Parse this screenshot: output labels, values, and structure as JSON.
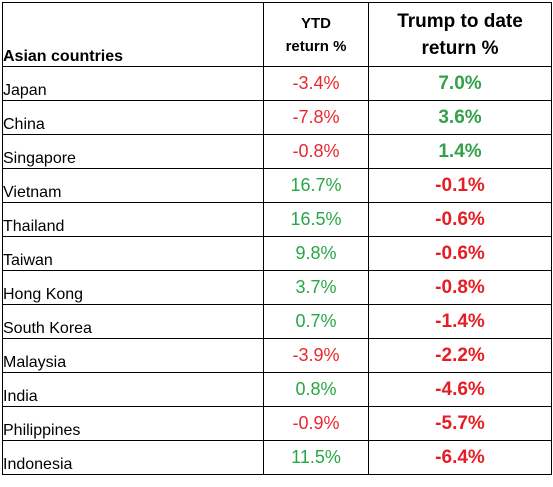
{
  "headers": {
    "country": "Asian countries",
    "ytd_line1": "YTD",
    "ytd_line2": "return %",
    "trump_line1": "Trump to date",
    "trump_line2": "return %"
  },
  "colors": {
    "negative": "#e8282e",
    "positive": "#28a745"
  },
  "rows": [
    {
      "country": "Japan",
      "ytd": "-3.4%",
      "ytd_sign": "neg",
      "trump": "7.0%",
      "trump_sign": "pos"
    },
    {
      "country": "China",
      "ytd": "-7.8%",
      "ytd_sign": "neg",
      "trump": "3.6%",
      "trump_sign": "pos"
    },
    {
      "country": "Singapore",
      "ytd": "-0.8%",
      "ytd_sign": "neg",
      "trump": "1.4%",
      "trump_sign": "pos"
    },
    {
      "country": "Vietnam",
      "ytd": "16.7%",
      "ytd_sign": "pos",
      "trump": "-0.1%",
      "trump_sign": "neg"
    },
    {
      "country": "Thailand",
      "ytd": "16.5%",
      "ytd_sign": "pos",
      "trump": "-0.6%",
      "trump_sign": "neg"
    },
    {
      "country": "Taiwan",
      "ytd": "9.8%",
      "ytd_sign": "pos",
      "trump": "-0.6%",
      "trump_sign": "neg"
    },
    {
      "country": "Hong Kong",
      "ytd": "3.7%",
      "ytd_sign": "pos",
      "trump": "-0.8%",
      "trump_sign": "neg"
    },
    {
      "country": "South Korea",
      "ytd": "0.7%",
      "ytd_sign": "pos",
      "trump": "-1.4%",
      "trump_sign": "neg"
    },
    {
      "country": "Malaysia",
      "ytd": "-3.9%",
      "ytd_sign": "neg",
      "trump": "-2.2%",
      "trump_sign": "neg"
    },
    {
      "country": "India",
      "ytd": "0.8%",
      "ytd_sign": "pos",
      "trump": "-4.6%",
      "trump_sign": "neg"
    },
    {
      "country": "Philippines",
      "ytd": "-0.9%",
      "ytd_sign": "neg",
      "trump": "-5.7%",
      "trump_sign": "neg"
    },
    {
      "country": "Indonesia",
      "ytd": "11.5%",
      "ytd_sign": "pos",
      "trump": "-6.4%",
      "trump_sign": "neg"
    }
  ]
}
